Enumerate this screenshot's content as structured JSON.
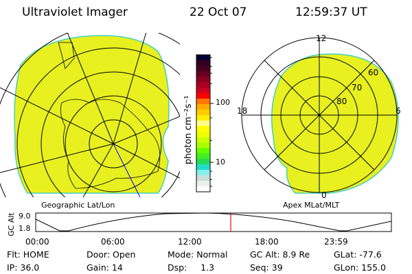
{
  "header": {
    "instrument": "Ultraviolet Imager",
    "date": "22 Oct 07",
    "time": "12:59:37 UT"
  },
  "left_panel": {
    "label": "Geographic Lat/Lon"
  },
  "right_panel": {
    "label": "Apex MLat/MLT",
    "mlt_labels": [
      "12",
      "18",
      "6",
      "0"
    ],
    "lat_labels": [
      "60",
      "70",
      "80"
    ]
  },
  "colorbar": {
    "unit_label": "photon cm⁻²s⁻¹",
    "ticks": [
      "100",
      "10"
    ],
    "colors": [
      "#000033",
      "#330022",
      "#440022",
      "#660022",
      "#880022",
      "#aa0022",
      "#cc0022",
      "#ff0000",
      "#ff7700",
      "#ffaa00",
      "#ffcc00",
      "#ffee00",
      "#ffff88",
      "#ffff00",
      "#eeff00",
      "#ccff00",
      "#aaff00",
      "#66ff00",
      "#44ee22",
      "#22dd55",
      "#22ddcc",
      "#88eeee",
      "#ccdddd",
      "#e8f0ea",
      "#ffffff"
    ]
  },
  "altitude_plot": {
    "ylabel": "GC Alt",
    "yticks": [
      "9.0",
      "1.8"
    ],
    "xticks": [
      "00:00",
      "06:00",
      "12:00",
      "18:00",
      "23:59"
    ],
    "current_time_marker_color": "#ff0000"
  },
  "info": {
    "flt": "Flt: HOME",
    "ip": "IP: 36.0",
    "door": "Door: Open",
    "gain": "Gain: 14",
    "mode": "Mode: Normal",
    "dsp": "Dsp:     1.3",
    "gcalt": "GC Alt: 8.9 Re",
    "seq": "Seq: 39",
    "glat": "GLat: -77.6",
    "glon": "GLon: 155.0"
  },
  "colors": {
    "aurora_fill": "#e8f020",
    "edge": "#40d0c0"
  }
}
